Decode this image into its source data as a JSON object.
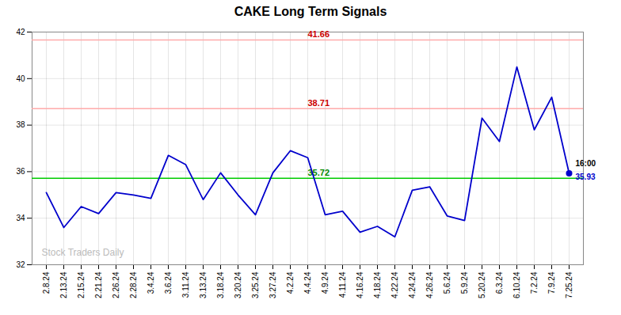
{
  "chart_data": {
    "type": "line",
    "title": "CAKE Long Term Signals",
    "categories": [
      "2.8.24",
      "2.13.24",
      "2.15.24",
      "2.21.24",
      "2.26.24",
      "2.28.24",
      "3.4.24",
      "3.6.24",
      "3.11.24",
      "3.13.24",
      "3.18.24",
      "3.20.24",
      "3.25.24",
      "3.27.24",
      "4.2.24",
      "4.4.24",
      "4.9.24",
      "4.11.24",
      "4.16.24",
      "4.18.24",
      "4.22.24",
      "4.24.24",
      "4.26.24",
      "5.6.24",
      "5.9.24",
      "5.20.24",
      "6.3.24",
      "6.10.24",
      "7.2.24",
      "7.9.24",
      "7.25.24"
    ],
    "values": [
      35.1,
      33.6,
      34.5,
      34.2,
      35.1,
      35.0,
      34.85,
      36.7,
      36.3,
      34.8,
      35.95,
      35.0,
      34.15,
      35.95,
      36.9,
      36.6,
      34.15,
      34.3,
      33.4,
      33.65,
      33.2,
      35.2,
      35.35,
      34.1,
      33.9,
      38.3,
      37.3,
      40.5,
      37.8,
      39.2,
      35.93
    ],
    "color": "#0000cc",
    "reference_lines": [
      {
        "value": 41.66,
        "label": "41.66",
        "color": "#ffaaaa",
        "label_color": "#cc0000"
      },
      {
        "value": 38.71,
        "label": "38.71",
        "color": "#ffaaaa",
        "label_color": "#cc0000"
      },
      {
        "value": 35.72,
        "label": "35.72",
        "color": "#00cc00",
        "label_color": "#008800"
      }
    ],
    "last_point_label": "16:00",
    "watermark": "Stock Traders Daily",
    "watermark_color": "#bbbbbb",
    "ylim": [
      32,
      42
    ],
    "yticks": [
      32,
      34,
      36,
      38,
      40,
      42
    ],
    "grid": true
  }
}
